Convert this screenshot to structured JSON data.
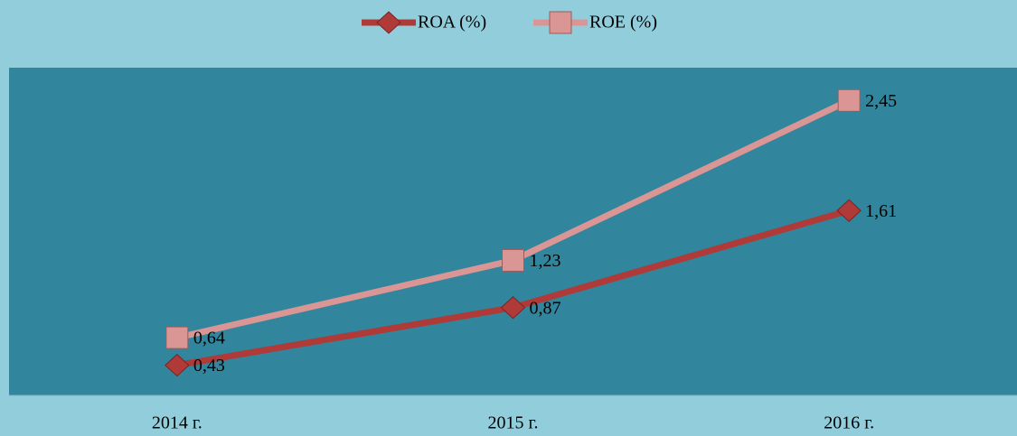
{
  "chart_data": {
    "type": "line",
    "categories": [
      "2014 г.",
      "2015 г.",
      "2016 г."
    ],
    "series": [
      {
        "name": "ROA (%)",
        "color": "#b03a38",
        "values": [
          0.43,
          0.87,
          1.61
        ],
        "value_labels": [
          "0,43",
          "0,87",
          "1,61"
        ]
      },
      {
        "name": "ROE (%)",
        "color": "#d99694",
        "values": [
          0.64,
          1.23,
          2.45
        ],
        "value_labels": [
          "0,64",
          "1,23",
          "2,45"
        ]
      }
    ],
    "ylim": [
      0.2,
      2.7
    ]
  }
}
